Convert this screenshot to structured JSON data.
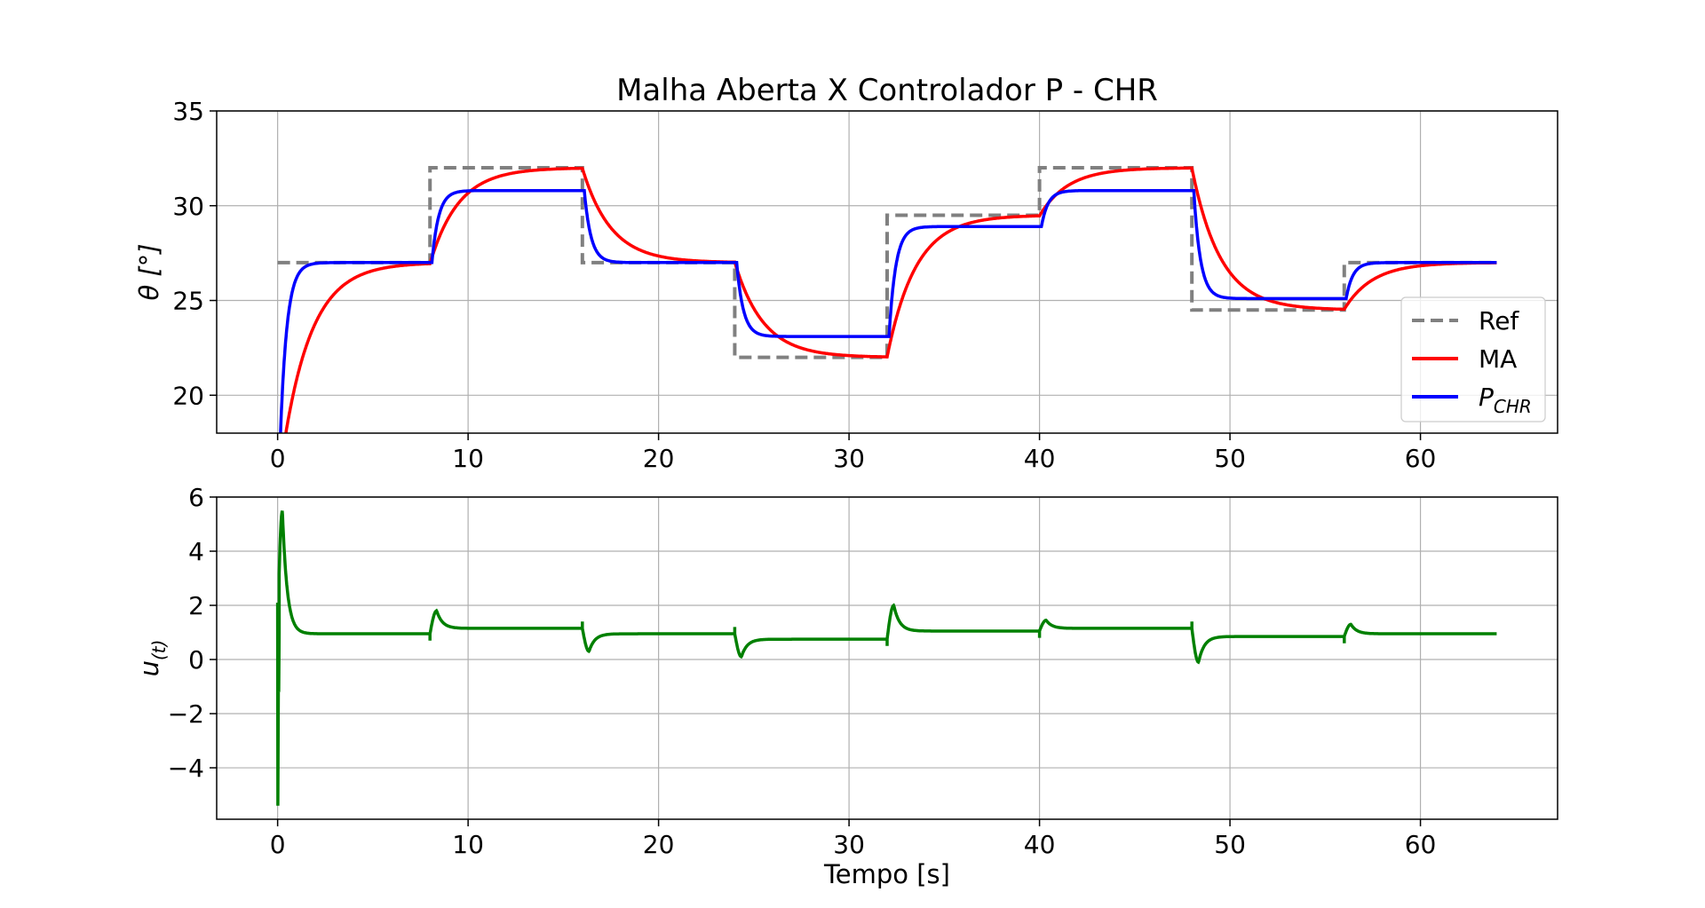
{
  "chart_data": [
    {
      "type": "line",
      "title": "Malha Aberta X Controlador P - CHR",
      "xlabel": "",
      "ylabel": "θ [°]",
      "xlim": [
        -3.2,
        67.2
      ],
      "ylim": [
        18,
        35
      ],
      "xticks": [
        0,
        10,
        20,
        30,
        40,
        50,
        60
      ],
      "yticks": [
        20,
        25,
        30,
        35
      ],
      "grid": true,
      "legend": "lower-right",
      "setpoints": {
        "times": [
          0,
          8,
          16,
          24,
          32,
          40,
          48,
          56,
          64
        ],
        "ref": [
          27,
          32,
          27,
          22,
          29.5,
          32,
          24.5,
          27
        ],
        "pchr_steady": [
          27,
          30.8,
          27,
          23.1,
          28.9,
          30.8,
          25.1,
          27
        ]
      },
      "series": [
        {
          "name": "Ref",
          "color": "#808080",
          "style": "dashed",
          "initial": 27,
          "tau": 0
        },
        {
          "name": "MA",
          "color": "#ff0000",
          "style": "solid",
          "initial": 15,
          "tau": 1.5
        },
        {
          "name": "P",
          "name_subscript": "CHR",
          "color": "#0000ff",
          "style": "solid",
          "initial": 15,
          "tau": 0.35
        }
      ]
    },
    {
      "type": "line",
      "title": "",
      "xlabel": "Tempo [s]",
      "ylabel": "u",
      "ylabel_subscript": "(t)",
      "xlim": [
        -3.2,
        67.2
      ],
      "ylim": [
        -5.9,
        6
      ],
      "xticks": [
        0,
        10,
        20,
        30,
        40,
        50,
        60
      ],
      "yticks": [
        -4,
        -2,
        0,
        2,
        4,
        6
      ],
      "grid": true,
      "series": [
        {
          "name": "",
          "color": "#008000",
          "initial_dip": -5.4,
          "initial_peak": 5.5,
          "levels": [
            0.95,
            1.15,
            0.95,
            0.75,
            1.05,
            1.15,
            0.85,
            0.95
          ],
          "peaks": [
            5.5,
            1.8,
            0.3,
            0.1,
            2.0,
            1.45,
            -0.1,
            1.3
          ]
        }
      ]
    }
  ]
}
